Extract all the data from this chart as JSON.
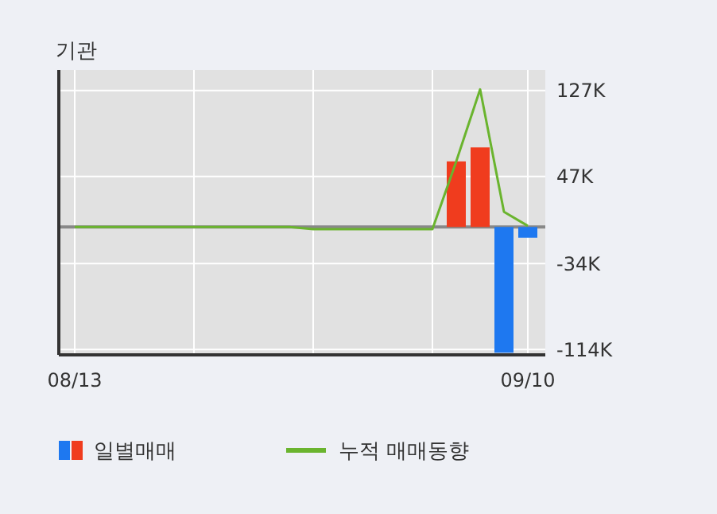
{
  "chart_data": {
    "type": "bar",
    "title": "기관",
    "categories": [
      "08/13",
      null,
      null,
      null,
      null,
      null,
      null,
      null,
      null,
      null,
      null,
      null,
      null,
      null,
      null,
      null,
      null,
      null,
      null,
      "09/10"
    ],
    "series": [
      {
        "name": "일별매매",
        "colors": [
          null,
          null,
          null,
          null,
          null,
          null,
          null,
          null,
          null,
          null,
          null,
          null,
          null,
          null,
          null,
          null,
          "#f03c1e",
          "#f03c1e",
          "#1e78f0",
          "#1e78f0"
        ],
        "values": [
          null,
          null,
          null,
          null,
          null,
          null,
          null,
          null,
          null,
          null,
          null,
          null,
          null,
          null,
          null,
          null,
          61,
          74,
          -117,
          -10
        ]
      },
      {
        "name": "누적 매매동향",
        "type": "line",
        "color": "#6ab42e",
        "values": [
          0,
          0,
          0,
          0,
          0,
          0,
          0,
          0,
          0,
          0,
          -2,
          -2,
          -2,
          -2,
          -2,
          -2,
          61,
          128,
          14,
          1
        ]
      }
    ],
    "ylim": [
      -119,
      146
    ],
    "yticks": [
      {
        "value": 127,
        "label": "127K"
      },
      {
        "value": 47,
        "label": "47K"
      },
      {
        "value": -34,
        "label": "-34K"
      },
      {
        "value": -114,
        "label": "-114K"
      }
    ],
    "grid": true,
    "legend": "bottom"
  }
}
